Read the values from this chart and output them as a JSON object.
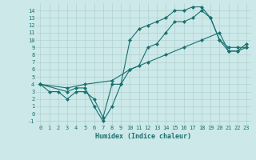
{
  "xlabel": "Humidex (Indice chaleur)",
  "ylabel": "",
  "background_color": "#cce8e8",
  "grid_color": "#aacccc",
  "line_color": "#1a7070",
  "xlim": [
    -0.5,
    23.5
  ],
  "ylim": [
    -1.5,
    15.0
  ],
  "xticks": [
    0,
    1,
    2,
    3,
    4,
    5,
    6,
    7,
    8,
    9,
    10,
    11,
    12,
    13,
    14,
    15,
    16,
    17,
    18,
    19,
    20,
    21,
    22,
    23
  ],
  "yticks": [
    -1,
    0,
    1,
    2,
    3,
    4,
    5,
    6,
    7,
    8,
    9,
    10,
    11,
    12,
    13,
    14
  ],
  "line1_x": [
    0,
    1,
    2,
    3,
    4,
    5,
    6,
    7,
    8,
    9,
    10,
    11,
    12,
    13,
    14,
    15,
    16,
    17,
    18,
    19,
    20,
    21,
    22,
    23
  ],
  "line1_y": [
    4,
    3,
    3,
    2,
    3,
    3,
    2,
    -0.5,
    4,
    4,
    10,
    11.5,
    12,
    12.5,
    13,
    14,
    14,
    14.5,
    14.5,
    13,
    10,
    9,
    9,
    9
  ],
  "line2_x": [
    0,
    3,
    4,
    5,
    6,
    7,
    8,
    9,
    10,
    11,
    12,
    13,
    14,
    15,
    16,
    17,
    18,
    19,
    20,
    21,
    22,
    23
  ],
  "line2_y": [
    4,
    3,
    3.5,
    3.5,
    1,
    -1,
    1,
    4,
    6,
    6.5,
    9,
    9.5,
    11,
    12.5,
    12.5,
    13,
    14,
    13,
    10,
    8.5,
    8.5,
    9
  ],
  "line3_x": [
    0,
    3,
    5,
    8,
    10,
    12,
    14,
    16,
    18,
    20,
    21,
    22,
    23
  ],
  "line3_y": [
    4,
    3.5,
    4,
    4.5,
    6,
    7,
    8,
    9,
    10,
    11,
    8.5,
    8.5,
    9.5
  ],
  "xlabel_fontsize": 6,
  "tick_fontsize": 5,
  "marker_size": 2.5,
  "line_width": 0.8
}
